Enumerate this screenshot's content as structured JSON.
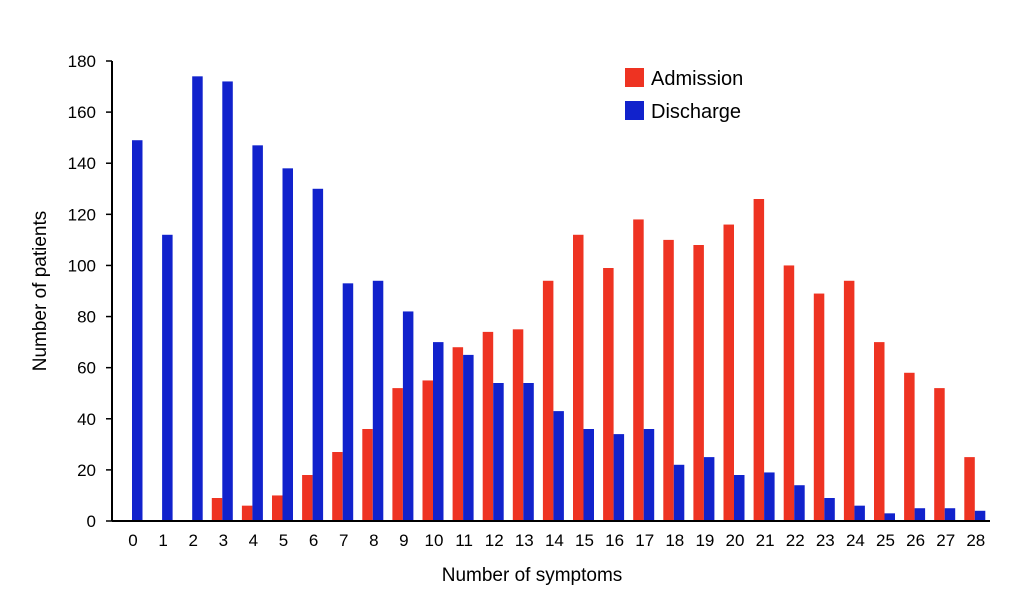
{
  "chart_data": {
    "type": "bar",
    "xlabel": "Number of symptoms",
    "ylabel": "Number of patients",
    "ylim": [
      0,
      180
    ],
    "yticks": [
      0,
      20,
      40,
      60,
      80,
      100,
      120,
      140,
      160,
      180
    ],
    "categories": [
      "0",
      "1",
      "2",
      "3",
      "4",
      "5",
      "6",
      "7",
      "8",
      "9",
      "10",
      "11",
      "12",
      "13",
      "14",
      "15",
      "16",
      "17",
      "18",
      "19",
      "20",
      "21",
      "22",
      "23",
      "24",
      "25",
      "26",
      "27",
      "28"
    ],
    "series": [
      {
        "name": "Admission",
        "color": "#ee3322",
        "values": [
          0,
          0,
          0,
          9,
          6,
          10,
          18,
          27,
          36,
          52,
          55,
          68,
          74,
          75,
          94,
          112,
          99,
          118,
          110,
          108,
          116,
          126,
          100,
          89,
          94,
          70,
          58,
          52,
          25
        ]
      },
      {
        "name": "Discharge",
        "color": "#1122cc",
        "values": [
          149,
          112,
          174,
          172,
          147,
          138,
          130,
          93,
          94,
          82,
          70,
          65,
          54,
          54,
          43,
          36,
          34,
          36,
          22,
          25,
          18,
          19,
          14,
          9,
          6,
          3,
          5,
          5,
          4
        ]
      }
    ],
    "legend_position": "top-right",
    "grid": false
  }
}
